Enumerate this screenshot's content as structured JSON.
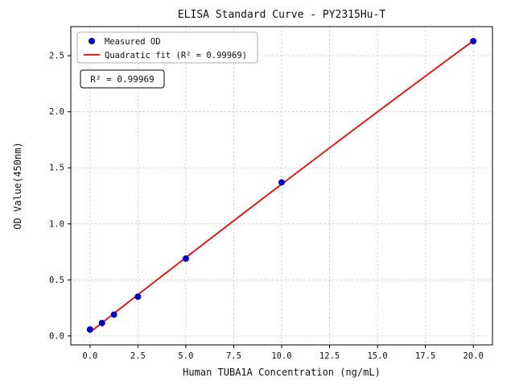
{
  "figure": {
    "background": "#ffffff"
  },
  "chart_data": {
    "type": "scatter",
    "title": "ELISA Standard Curve - PY2315Hu-T",
    "xlabel": "Human TUBA1A Concentration (ng/mL)",
    "ylabel": "OD Value(450nm)",
    "xlim": [
      -1,
      21
    ],
    "ylim": [
      -0.08,
      2.76
    ],
    "x_ticks": [
      0.0,
      2.5,
      5.0,
      7.5,
      10.0,
      12.5,
      15.0,
      17.5,
      20.0
    ],
    "y_ticks": [
      0.0,
      0.5,
      1.0,
      1.5,
      2.0,
      2.5
    ],
    "grid": "dashed",
    "grid_color": "#c8c8c8",
    "legend_position": "upper-left",
    "series": [
      {
        "name": "Measured OD",
        "kind": "scatter",
        "marker": "circle",
        "color": "#0000cd",
        "x": [
          0,
          0.625,
          1.25,
          2.5,
          5,
          10,
          20
        ],
        "y": [
          0.057,
          0.115,
          0.19,
          0.35,
          0.69,
          1.37,
          2.63
        ]
      },
      {
        "name": "Quadratic fit (R² = 0.99969)",
        "kind": "line",
        "fit": "quadratic",
        "color": "#ff0000"
      }
    ],
    "annotation": "R² = 0.99969"
  }
}
